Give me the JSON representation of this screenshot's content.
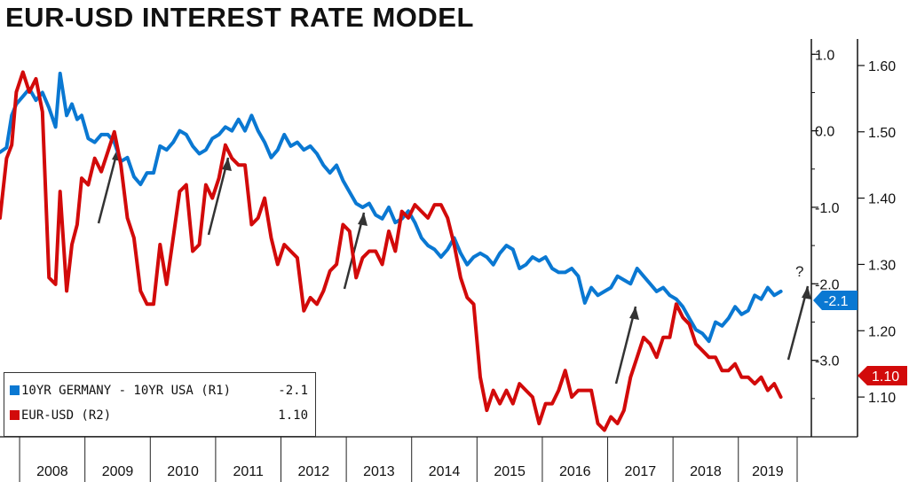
{
  "title": "EUR-USD INTEREST RATE MODEL",
  "legend": {
    "items": [
      {
        "label": "10YR GERMANY - 10YR USA (R1)",
        "value": "-2.1",
        "color": "#0a78d2"
      },
      {
        "label": "EUR-USD  (R2)",
        "value": "1.10",
        "color": "#d20a0a"
      }
    ]
  },
  "last_value_tags": {
    "spread": "-2.1",
    "eurusd": "1.10"
  },
  "annotations": {
    "question_mark": "?"
  },
  "chart_data": {
    "type": "line",
    "x_ticks": [
      "2008",
      "2009",
      "2010",
      "2011",
      "2012",
      "2013",
      "2014",
      "2015",
      "2016",
      "2017",
      "2018",
      "2019"
    ],
    "x_range": [
      2007.7,
      2019.9
    ],
    "axes": {
      "r1": {
        "ticks": [
          "1.0",
          "0.0",
          "-1.0",
          "-2.0",
          "-3.0"
        ],
        "ylim": [
          -4.0,
          1.2
        ]
      },
      "r2": {
        "ticks": [
          "1.60",
          "1.50",
          "1.40",
          "1.30",
          "1.20",
          "1.10"
        ],
        "ylim": [
          1.04,
          1.64
        ]
      }
    },
    "grid": false,
    "legend_position": "bottom-left",
    "series": [
      {
        "name": "10YR GERMANY - 10YR USA (R1)",
        "axis": "r1",
        "color": "#0a78d2",
        "x": [
          2007.7,
          2007.8,
          2007.88,
          2007.95,
          2008.05,
          2008.15,
          2008.25,
          2008.35,
          2008.45,
          2008.55,
          2008.62,
          2008.72,
          2008.8,
          2008.88,
          2008.95,
          2009.05,
          2009.15,
          2009.25,
          2009.35,
          2009.45,
          2009.55,
          2009.65,
          2009.75,
          2009.85,
          2009.95,
          2010.05,
          2010.15,
          2010.25,
          2010.35,
          2010.45,
          2010.55,
          2010.65,
          2010.75,
          2010.85,
          2010.95,
          2011.05,
          2011.15,
          2011.25,
          2011.35,
          2011.45,
          2011.55,
          2011.65,
          2011.75,
          2011.85,
          2011.95,
          2012.05,
          2012.15,
          2012.25,
          2012.35,
          2012.45,
          2012.55,
          2012.65,
          2012.75,
          2012.85,
          2012.95,
          2013.05,
          2013.15,
          2013.25,
          2013.35,
          2013.45,
          2013.55,
          2013.65,
          2013.75,
          2013.85,
          2013.95,
          2014.05,
          2014.15,
          2014.25,
          2014.35,
          2014.45,
          2014.55,
          2014.65,
          2014.75,
          2014.85,
          2014.95,
          2015.05,
          2015.15,
          2015.25,
          2015.35,
          2015.45,
          2015.55,
          2015.65,
          2015.75,
          2015.85,
          2015.95,
          2016.05,
          2016.15,
          2016.25,
          2016.35,
          2016.45,
          2016.55,
          2016.65,
          2016.75,
          2016.85,
          2016.95,
          2017.05,
          2017.15,
          2017.25,
          2017.35,
          2017.45,
          2017.55,
          2017.65,
          2017.75,
          2017.85,
          2017.95,
          2018.05,
          2018.15,
          2018.25,
          2018.35,
          2018.45,
          2018.55,
          2018.65,
          2018.75,
          2018.85,
          2018.95,
          2019.05,
          2019.15,
          2019.25,
          2019.35,
          2019.45,
          2019.55,
          2019.65
        ],
        "values": [
          -0.28,
          -0.22,
          0.2,
          0.35,
          0.45,
          0.55,
          0.4,
          0.5,
          0.3,
          0.05,
          0.75,
          0.2,
          0.35,
          0.15,
          0.2,
          -0.1,
          -0.15,
          -0.05,
          -0.05,
          -0.15,
          -0.4,
          -0.35,
          -0.6,
          -0.7,
          -0.55,
          -0.55,
          -0.2,
          -0.25,
          -0.15,
          0.0,
          -0.05,
          -0.2,
          -0.3,
          -0.25,
          -0.1,
          -0.05,
          0.05,
          0.0,
          0.15,
          0.0,
          0.2,
          0.0,
          -0.15,
          -0.35,
          -0.25,
          -0.05,
          -0.2,
          -0.15,
          -0.25,
          -0.2,
          -0.3,
          -0.45,
          -0.55,
          -0.45,
          -0.65,
          -0.8,
          -0.95,
          -1.0,
          -0.95,
          -1.1,
          -1.15,
          -1.0,
          -1.2,
          -1.15,
          -1.05,
          -1.2,
          -1.4,
          -1.5,
          -1.55,
          -1.65,
          -1.55,
          -1.4,
          -1.6,
          -1.75,
          -1.65,
          -1.6,
          -1.65,
          -1.75,
          -1.6,
          -1.5,
          -1.55,
          -1.8,
          -1.75,
          -1.65,
          -1.7,
          -1.65,
          -1.8,
          -1.85,
          -1.85,
          -1.8,
          -1.9,
          -2.25,
          -2.05,
          -2.15,
          -2.1,
          -2.05,
          -1.9,
          -1.95,
          -2.0,
          -1.8,
          -1.9,
          -2.0,
          -2.1,
          -2.05,
          -2.15,
          -2.2,
          -2.3,
          -2.45,
          -2.6,
          -2.65,
          -2.75,
          -2.5,
          -2.55,
          -2.45,
          -2.3,
          -2.4,
          -2.35,
          -2.15,
          -2.2,
          -2.05,
          -2.15,
          -2.1
        ]
      },
      {
        "name": "EUR-USD  (R2)",
        "axis": "r2",
        "color": "#d20a0a",
        "x": [
          2007.7,
          2007.8,
          2007.88,
          2007.95,
          2008.05,
          2008.15,
          2008.25,
          2008.35,
          2008.45,
          2008.55,
          2008.62,
          2008.72,
          2008.8,
          2008.88,
          2008.95,
          2009.05,
          2009.15,
          2009.25,
          2009.35,
          2009.45,
          2009.55,
          2009.65,
          2009.75,
          2009.85,
          2009.95,
          2010.05,
          2010.15,
          2010.25,
          2010.35,
          2010.45,
          2010.55,
          2010.65,
          2010.75,
          2010.85,
          2010.95,
          2011.05,
          2011.15,
          2011.25,
          2011.35,
          2011.45,
          2011.55,
          2011.65,
          2011.75,
          2011.85,
          2011.95,
          2012.05,
          2012.15,
          2012.25,
          2012.35,
          2012.45,
          2012.55,
          2012.65,
          2012.75,
          2012.85,
          2012.95,
          2013.05,
          2013.15,
          2013.25,
          2013.35,
          2013.45,
          2013.55,
          2013.65,
          2013.75,
          2013.85,
          2013.95,
          2014.05,
          2014.15,
          2014.25,
          2014.35,
          2014.45,
          2014.55,
          2014.65,
          2014.75,
          2014.85,
          2014.95,
          2015.05,
          2015.15,
          2015.25,
          2015.35,
          2015.45,
          2015.55,
          2015.65,
          2015.75,
          2015.85,
          2015.95,
          2016.05,
          2016.15,
          2016.25,
          2016.35,
          2016.45,
          2016.55,
          2016.65,
          2016.75,
          2016.85,
          2016.95,
          2017.05,
          2017.15,
          2017.25,
          2017.35,
          2017.45,
          2017.55,
          2017.65,
          2017.75,
          2017.85,
          2017.95,
          2018.05,
          2018.15,
          2018.25,
          2018.35,
          2018.45,
          2018.55,
          2018.65,
          2018.75,
          2018.85,
          2018.95,
          2019.05,
          2019.15,
          2019.25,
          2019.35,
          2019.45,
          2019.55,
          2019.65
        ],
        "values": [
          1.37,
          1.46,
          1.48,
          1.56,
          1.59,
          1.56,
          1.58,
          1.53,
          1.28,
          1.27,
          1.41,
          1.26,
          1.33,
          1.36,
          1.43,
          1.42,
          1.46,
          1.44,
          1.47,
          1.5,
          1.45,
          1.37,
          1.34,
          1.26,
          1.24,
          1.24,
          1.33,
          1.27,
          1.34,
          1.41,
          1.42,
          1.32,
          1.33,
          1.42,
          1.4,
          1.43,
          1.48,
          1.46,
          1.45,
          1.45,
          1.36,
          1.37,
          1.4,
          1.34,
          1.3,
          1.33,
          1.32,
          1.31,
          1.23,
          1.25,
          1.24,
          1.26,
          1.29,
          1.3,
          1.36,
          1.35,
          1.28,
          1.31,
          1.32,
          1.32,
          1.3,
          1.35,
          1.32,
          1.38,
          1.37,
          1.39,
          1.38,
          1.37,
          1.39,
          1.39,
          1.37,
          1.33,
          1.28,
          1.25,
          1.24,
          1.13,
          1.08,
          1.11,
          1.09,
          1.11,
          1.09,
          1.12,
          1.11,
          1.1,
          1.06,
          1.09,
          1.09,
          1.11,
          1.14,
          1.1,
          1.11,
          1.11,
          1.11,
          1.06,
          1.05,
          1.07,
          1.06,
          1.08,
          1.13,
          1.16,
          1.19,
          1.18,
          1.16,
          1.19,
          1.19,
          1.24,
          1.22,
          1.21,
          1.18,
          1.17,
          1.16,
          1.16,
          1.14,
          1.14,
          1.15,
          1.13,
          1.13,
          1.12,
          1.13,
          1.11,
          1.12,
          1.1
        ]
      }
    ]
  }
}
